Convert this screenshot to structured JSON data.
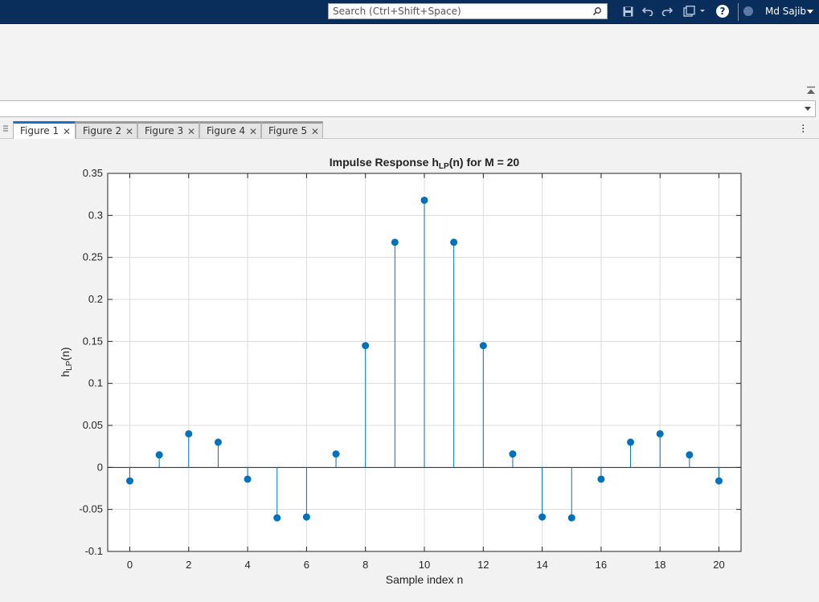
{
  "toolbar": {
    "search_placeholder": "Search (Ctrl+Shift+Space)",
    "help_label": "?",
    "user_name": "Md Sajib",
    "icons": [
      "save-icon",
      "undo-icon",
      "redo-icon",
      "window-layout-icon",
      "help-icon"
    ]
  },
  "tabs": [
    {
      "label": "Figure 1",
      "active": true
    },
    {
      "label": "Figure 2",
      "active": false
    },
    {
      "label": "Figure 3",
      "active": false
    },
    {
      "label": "Figure 4",
      "active": false
    },
    {
      "label": "Figure 5",
      "active": false
    }
  ],
  "colors": {
    "accent": "#1c6fc8",
    "stem": "#0072bd",
    "titlebar": "#0a2e5c"
  },
  "chart_data": {
    "type": "stem",
    "title_main": "Impulse  Response  h",
    "title_sub": "LP",
    "title_tail": "(n)  for  M  =  20",
    "xlabel": "Sample index n",
    "ylabel_main": "h",
    "ylabel_sub": "LP",
    "ylabel_tail": "(n)",
    "xlim": [
      -0.75,
      20.75
    ],
    "ylim": [
      -0.1,
      0.35
    ],
    "xticks": [
      0,
      2,
      4,
      6,
      8,
      10,
      12,
      14,
      16,
      18,
      20
    ],
    "xtick_labels": [
      "0",
      "2",
      "4",
      "6",
      "8",
      "10",
      "12",
      "14",
      "16",
      "18",
      "20"
    ],
    "yticks": [
      -0.1,
      -0.05,
      0,
      0.05,
      0.1,
      0.15,
      0.2,
      0.25,
      0.3,
      0.35
    ],
    "ytick_labels": [
      "-0.1",
      "-0.05",
      "0",
      "0.05",
      "0.1",
      "0.15",
      "0.2",
      "0.25",
      "0.3",
      "0.35"
    ],
    "grid": true,
    "x": [
      0,
      1,
      2,
      3,
      4,
      5,
      6,
      7,
      8,
      9,
      10,
      11,
      12,
      13,
      14,
      15,
      16,
      17,
      18,
      19,
      20
    ],
    "y": [
      -0.016,
      0.015,
      0.04,
      0.03,
      -0.014,
      -0.06,
      -0.059,
      0.016,
      0.145,
      0.268,
      0.318,
      0.268,
      0.145,
      0.016,
      -0.059,
      -0.06,
      -0.014,
      0.03,
      0.04,
      0.015,
      -0.016
    ]
  }
}
